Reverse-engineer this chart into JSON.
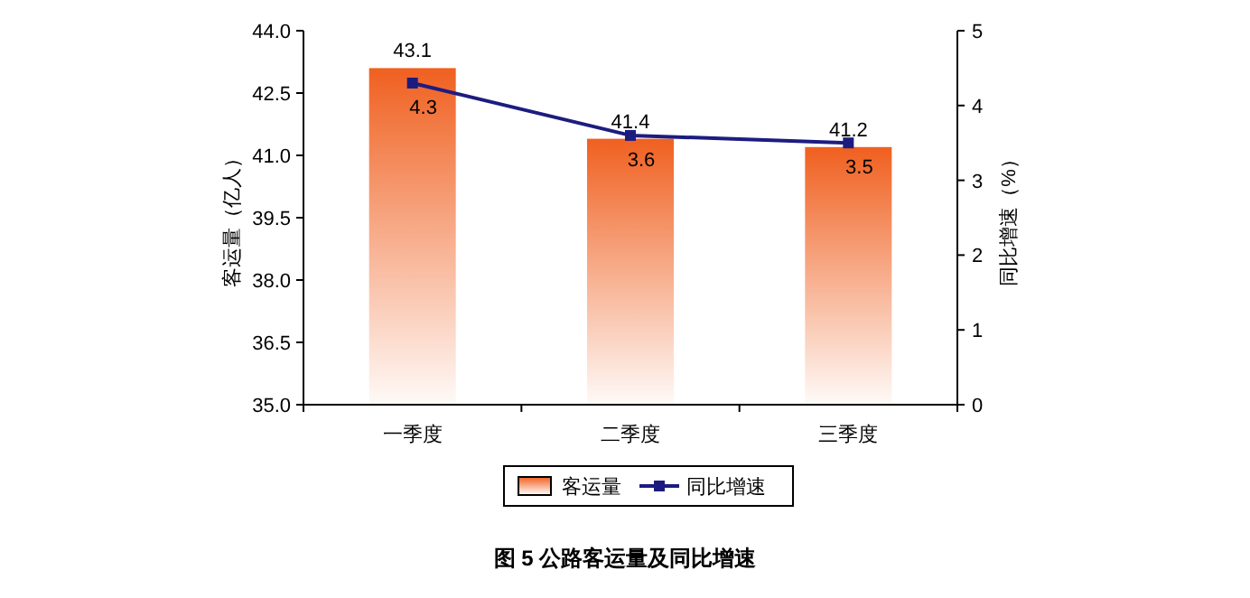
{
  "chart_data": {
    "type": "bar",
    "title": "图 5  公路客运量及同比增速",
    "categories": [
      "一季度",
      "二季度",
      "三季度"
    ],
    "series": [
      {
        "name": "客运量",
        "color": "#f06020",
        "values": [
          43.1,
          41.4,
          41.2
        ]
      },
      {
        "name": "同比增速",
        "type": "line",
        "axis": "y2",
        "color": "#1c1c80",
        "values": [
          4.3,
          3.6,
          3.5
        ]
      }
    ],
    "ylabel": "客运量（亿人）",
    "y2label": "同比增速（%）",
    "ylim": [
      35,
      44
    ],
    "yticks": [
      {
        "value": 35,
        "label": "35.0"
      },
      {
        "value": 36.5,
        "label": "36.5"
      },
      {
        "value": 38,
        "label": "38.0"
      },
      {
        "value": 39.5,
        "label": "39.5"
      },
      {
        "value": 41,
        "label": "41.0"
      },
      {
        "value": 42.5,
        "label": "42.5"
      },
      {
        "value": 44,
        "label": "44.0"
      }
    ],
    "y2lim": [
      0,
      5
    ],
    "y2ticks": [
      0,
      1,
      2,
      3,
      4,
      5
    ],
    "data_labels": true,
    "legend": "bottom",
    "marker": "square",
    "line_style": "solid"
  }
}
